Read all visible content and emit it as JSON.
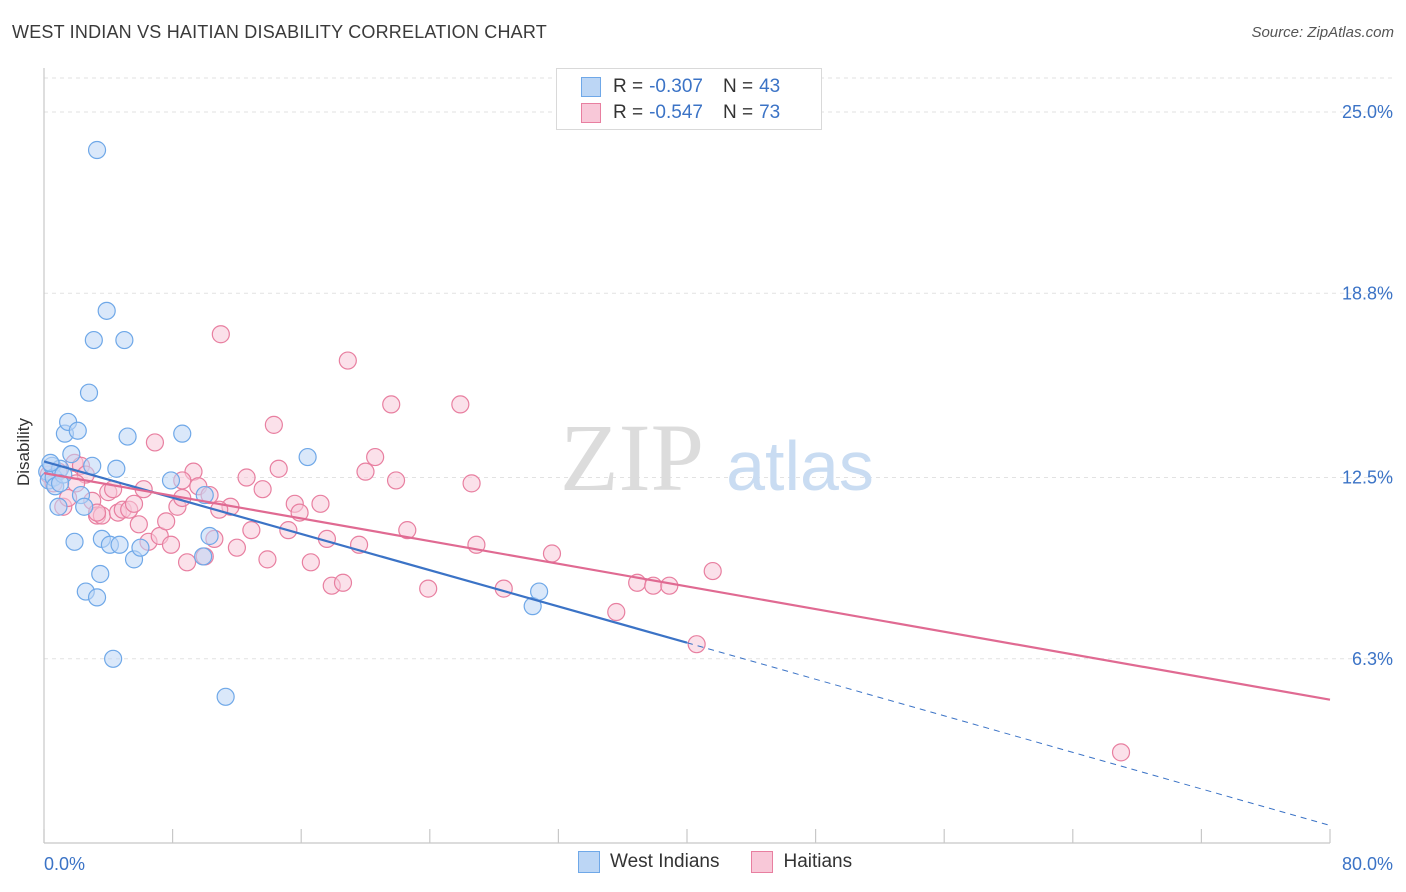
{
  "header": {
    "title": "WEST INDIAN VS HAITIAN DISABILITY CORRELATION CHART",
    "source": "Source: ZipAtlas.com"
  },
  "watermark": {
    "zip": "ZIP",
    "atlas": "atlas"
  },
  "legend": {
    "rows": [
      {
        "r_label": "R =",
        "r_value": "-0.307",
        "n_label": "N =",
        "n_value": "43",
        "color": "#6fa8e8",
        "fill": "#bcd6f5"
      },
      {
        "r_label": "R =",
        "r_value": "-0.547",
        "n_label": "N =",
        "n_value": "73",
        "color": "#e87fa0",
        "fill": "#f8c8d8"
      }
    ]
  },
  "bottom_legend": {
    "west_indians": "West Indians",
    "haitians": "Haitians"
  },
  "chart_data": {
    "type": "scatter",
    "title": "WEST INDIAN VS HAITIAN DISABILITY CORRELATION CHART",
    "ylabel": "Disability",
    "xlim": [
      0,
      80
    ],
    "ylim": [
      0,
      26.3
    ],
    "x_tick_labels": [
      "0.0%",
      "80.0%"
    ],
    "y_ticks": [
      {
        "value": 25.0,
        "label": "25.0%"
      },
      {
        "value": 18.8,
        "label": "18.8%"
      },
      {
        "value": 12.5,
        "label": "12.5%"
      },
      {
        "value": 6.3,
        "label": "6.3%"
      }
    ],
    "grid": true,
    "series": [
      {
        "name": "West Indians",
        "color": "#3b73c6",
        "fill": "#bcd6f5",
        "points": [
          [
            0.2,
            12.7
          ],
          [
            0.3,
            12.4
          ],
          [
            0.5,
            12.9
          ],
          [
            0.6,
            12.5
          ],
          [
            0.7,
            12.2
          ],
          [
            0.9,
            11.5
          ],
          [
            1.0,
            12.8
          ],
          [
            1.2,
            12.6
          ],
          [
            1.3,
            14.0
          ],
          [
            1.5,
            14.4
          ],
          [
            1.7,
            13.3
          ],
          [
            1.9,
            10.3
          ],
          [
            2.1,
            14.1
          ],
          [
            2.3,
            11.9
          ],
          [
            2.5,
            11.5
          ],
          [
            2.6,
            8.6
          ],
          [
            2.8,
            15.4
          ],
          [
            3.0,
            12.9
          ],
          [
            3.1,
            17.2
          ],
          [
            3.3,
            8.4
          ],
          [
            3.5,
            9.2
          ],
          [
            3.6,
            10.4
          ],
          [
            3.9,
            18.2
          ],
          [
            4.1,
            10.2
          ],
          [
            4.3,
            6.3
          ],
          [
            4.5,
            12.8
          ],
          [
            4.7,
            10.2
          ],
          [
            5.2,
            13.9
          ],
          [
            5.6,
            9.7
          ],
          [
            6.0,
            10.1
          ],
          [
            7.9,
            12.4
          ],
          [
            8.6,
            14.0
          ],
          [
            9.9,
            9.8
          ],
          [
            10.3,
            10.5
          ],
          [
            11.3,
            5.0
          ],
          [
            16.4,
            13.2
          ],
          [
            30.4,
            8.1
          ],
          [
            30.8,
            8.6
          ],
          [
            3.3,
            23.7
          ],
          [
            5.0,
            17.2
          ],
          [
            0.4,
            13.0
          ],
          [
            1.0,
            12.3
          ],
          [
            10.0,
            11.9
          ]
        ]
      },
      {
        "name": "Haitians",
        "color": "#e06a92",
        "fill": "#f8c8d8",
        "points": [
          [
            0.3,
            12.6
          ],
          [
            0.6,
            12.3
          ],
          [
            0.9,
            12.7
          ],
          [
            1.2,
            11.5
          ],
          [
            1.5,
            11.8
          ],
          [
            1.9,
            13.0
          ],
          [
            2.3,
            12.9
          ],
          [
            2.6,
            12.6
          ],
          [
            3.0,
            11.7
          ],
          [
            3.3,
            11.2
          ],
          [
            3.6,
            11.2
          ],
          [
            4.0,
            12.0
          ],
          [
            4.3,
            12.1
          ],
          [
            4.6,
            11.3
          ],
          [
            4.9,
            11.4
          ],
          [
            5.3,
            11.4
          ],
          [
            5.6,
            11.6
          ],
          [
            5.9,
            10.9
          ],
          [
            6.2,
            12.1
          ],
          [
            6.5,
            10.3
          ],
          [
            6.9,
            13.7
          ],
          [
            7.2,
            10.5
          ],
          [
            7.6,
            11.0
          ],
          [
            7.9,
            10.2
          ],
          [
            8.3,
            11.5
          ],
          [
            8.6,
            11.8
          ],
          [
            8.9,
            9.6
          ],
          [
            9.3,
            12.7
          ],
          [
            9.6,
            12.2
          ],
          [
            10.0,
            9.8
          ],
          [
            10.3,
            11.9
          ],
          [
            10.6,
            10.4
          ],
          [
            11.0,
            17.4
          ],
          [
            11.6,
            11.5
          ],
          [
            12.0,
            10.1
          ],
          [
            12.6,
            12.5
          ],
          [
            12.9,
            10.7
          ],
          [
            13.6,
            12.1
          ],
          [
            13.9,
            9.7
          ],
          [
            14.3,
            14.3
          ],
          [
            14.6,
            12.8
          ],
          [
            15.2,
            10.7
          ],
          [
            15.6,
            11.6
          ],
          [
            15.9,
            11.3
          ],
          [
            16.6,
            9.6
          ],
          [
            17.2,
            11.6
          ],
          [
            17.6,
            10.4
          ],
          [
            17.9,
            8.8
          ],
          [
            18.6,
            8.9
          ],
          [
            18.9,
            16.5
          ],
          [
            19.6,
            10.2
          ],
          [
            20.0,
            12.7
          ],
          [
            20.6,
            13.2
          ],
          [
            21.6,
            15.0
          ],
          [
            21.9,
            12.4
          ],
          [
            22.6,
            10.7
          ],
          [
            25.9,
            15.0
          ],
          [
            26.6,
            12.3
          ],
          [
            26.9,
            10.2
          ],
          [
            28.6,
            8.7
          ],
          [
            31.6,
            9.9
          ],
          [
            35.6,
            7.9
          ],
          [
            36.9,
            8.9
          ],
          [
            37.9,
            8.8
          ],
          [
            38.9,
            8.8
          ],
          [
            40.6,
            6.8
          ],
          [
            41.6,
            9.3
          ],
          [
            67.0,
            3.1
          ],
          [
            3.3,
            11.3
          ],
          [
            8.6,
            12.4
          ],
          [
            23.9,
            8.7
          ],
          [
            10.9,
            11.4
          ],
          [
            2.0,
            12.3
          ]
        ]
      }
    ],
    "trend_lines": [
      {
        "series": "West Indians",
        "x": [
          0,
          40
        ],
        "y": [
          13.05,
          6.85
        ],
        "dashed_extension_to_x": 80,
        "dashed_extension_y": 0.6
      },
      {
        "series": "Haitians",
        "x": [
          0,
          80
        ],
        "y": [
          12.65,
          4.9
        ]
      }
    ]
  }
}
